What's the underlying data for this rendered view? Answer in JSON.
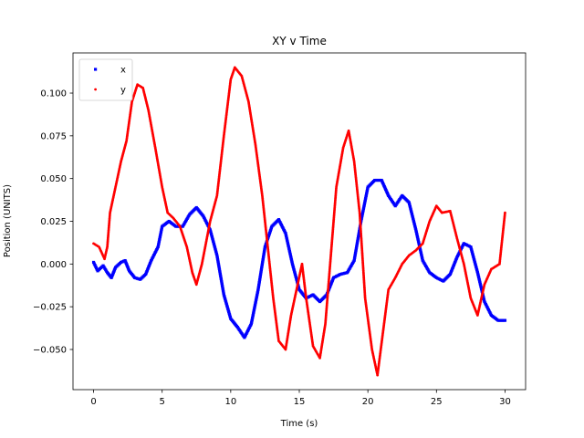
{
  "chart_data": {
    "type": "scatter",
    "title": "XY v Time",
    "xlabel": "Time (s)",
    "ylabel": "Position (UNITS)",
    "xlim": [
      -1.5,
      31.5
    ],
    "ylim": [
      -0.0735,
      0.1235
    ],
    "xticks": [
      0,
      5,
      10,
      15,
      20,
      25,
      30
    ],
    "xtick_labels": [
      "0",
      "5",
      "10",
      "15",
      "20",
      "25",
      "30"
    ],
    "yticks": [
      -0.05,
      -0.025,
      0.0,
      0.025,
      0.05,
      0.075,
      0.1
    ],
    "ytick_labels": [
      "−0.050",
      "−0.025",
      "0.000",
      "0.025",
      "0.050",
      "0.075",
      "0.100"
    ],
    "grid": false,
    "legend_position": "upper-left",
    "series": [
      {
        "name": "x",
        "color": "#0000ff",
        "marker": "square",
        "points": [
          [
            0.0,
            0.001
          ],
          [
            0.3,
            -0.004
          ],
          [
            0.7,
            -0.001
          ],
          [
            1.0,
            -0.005
          ],
          [
            1.3,
            -0.008
          ],
          [
            1.6,
            -0.002
          ],
          [
            2.0,
            0.001
          ],
          [
            2.3,
            0.002
          ],
          [
            2.6,
            -0.004
          ],
          [
            3.0,
            -0.008
          ],
          [
            3.4,
            -0.009
          ],
          [
            3.8,
            -0.006
          ],
          [
            4.2,
            0.002
          ],
          [
            4.7,
            0.01
          ],
          [
            5.0,
            0.022
          ],
          [
            5.5,
            0.025
          ],
          [
            6.0,
            0.022
          ],
          [
            6.5,
            0.022
          ],
          [
            7.0,
            0.029
          ],
          [
            7.5,
            0.033
          ],
          [
            8.0,
            0.028
          ],
          [
            8.5,
            0.02
          ],
          [
            9.0,
            0.005
          ],
          [
            9.5,
            -0.018
          ],
          [
            10.0,
            -0.032
          ],
          [
            10.5,
            -0.037
          ],
          [
            11.0,
            -0.043
          ],
          [
            11.5,
            -0.035
          ],
          [
            12.0,
            -0.015
          ],
          [
            12.5,
            0.01
          ],
          [
            13.0,
            0.022
          ],
          [
            13.5,
            0.026
          ],
          [
            14.0,
            0.018
          ],
          [
            14.5,
            0.0
          ],
          [
            15.0,
            -0.015
          ],
          [
            15.5,
            -0.02
          ],
          [
            16.0,
            -0.018
          ],
          [
            16.5,
            -0.022
          ],
          [
            17.0,
            -0.018
          ],
          [
            17.5,
            -0.008
          ],
          [
            18.0,
            -0.006
          ],
          [
            18.5,
            -0.005
          ],
          [
            19.0,
            0.002
          ],
          [
            19.5,
            0.025
          ],
          [
            20.0,
            0.045
          ],
          [
            20.5,
            0.049
          ],
          [
            21.0,
            0.049
          ],
          [
            21.5,
            0.04
          ],
          [
            22.0,
            0.034
          ],
          [
            22.5,
            0.04
          ],
          [
            23.0,
            0.036
          ],
          [
            23.5,
            0.02
          ],
          [
            24.0,
            0.002
          ],
          [
            24.5,
            -0.005
          ],
          [
            25.0,
            -0.008
          ],
          [
            25.5,
            -0.01
          ],
          [
            26.0,
            -0.006
          ],
          [
            26.5,
            0.004
          ],
          [
            27.0,
            0.012
          ],
          [
            27.5,
            0.01
          ],
          [
            28.0,
            -0.005
          ],
          [
            28.5,
            -0.022
          ],
          [
            29.0,
            -0.03
          ],
          [
            29.5,
            -0.033
          ],
          [
            30.0,
            -0.033
          ]
        ]
      },
      {
        "name": "y",
        "color": "#ff0000",
        "marker": "circle",
        "points": [
          [
            0.0,
            0.012
          ],
          [
            0.4,
            0.01
          ],
          [
            0.8,
            0.003
          ],
          [
            1.0,
            0.01
          ],
          [
            1.2,
            0.03
          ],
          [
            1.6,
            0.045
          ],
          [
            2.0,
            0.06
          ],
          [
            2.4,
            0.072
          ],
          [
            2.8,
            0.095
          ],
          [
            3.2,
            0.105
          ],
          [
            3.6,
            0.103
          ],
          [
            4.0,
            0.09
          ],
          [
            4.5,
            0.068
          ],
          [
            5.0,
            0.045
          ],
          [
            5.4,
            0.03
          ],
          [
            5.8,
            0.027
          ],
          [
            6.3,
            0.022
          ],
          [
            6.8,
            0.01
          ],
          [
            7.2,
            -0.005
          ],
          [
            7.5,
            -0.012
          ],
          [
            7.9,
            0.0
          ],
          [
            8.5,
            0.025
          ],
          [
            9.0,
            0.04
          ],
          [
            9.5,
            0.075
          ],
          [
            10.0,
            0.108
          ],
          [
            10.3,
            0.115
          ],
          [
            10.8,
            0.11
          ],
          [
            11.3,
            0.095
          ],
          [
            11.8,
            0.07
          ],
          [
            12.3,
            0.04
          ],
          [
            12.7,
            0.01
          ],
          [
            13.1,
            -0.02
          ],
          [
            13.5,
            -0.045
          ],
          [
            14.0,
            -0.05
          ],
          [
            14.4,
            -0.03
          ],
          [
            14.8,
            -0.015
          ],
          [
            15.2,
            0.0
          ],
          [
            15.5,
            -0.02
          ],
          [
            16.0,
            -0.048
          ],
          [
            16.5,
            -0.055
          ],
          [
            16.9,
            -0.035
          ],
          [
            17.3,
            0.005
          ],
          [
            17.7,
            0.045
          ],
          [
            18.2,
            0.068
          ],
          [
            18.6,
            0.078
          ],
          [
            19.0,
            0.06
          ],
          [
            19.4,
            0.03
          ],
          [
            19.8,
            -0.02
          ],
          [
            20.3,
            -0.05
          ],
          [
            20.7,
            -0.065
          ],
          [
            21.1,
            -0.04
          ],
          [
            21.5,
            -0.015
          ],
          [
            22.0,
            -0.008
          ],
          [
            22.5,
            0.0
          ],
          [
            23.0,
            0.005
          ],
          [
            23.5,
            0.008
          ],
          [
            24.0,
            0.012
          ],
          [
            24.5,
            0.025
          ],
          [
            25.0,
            0.034
          ],
          [
            25.4,
            0.03
          ],
          [
            26.0,
            0.031
          ],
          [
            26.5,
            0.015
          ],
          [
            27.0,
            0.0
          ],
          [
            27.5,
            -0.02
          ],
          [
            28.0,
            -0.03
          ],
          [
            28.5,
            -0.012
          ],
          [
            29.0,
            -0.003
          ],
          [
            29.6,
            0.0
          ],
          [
            30.0,
            0.03
          ]
        ]
      }
    ]
  }
}
